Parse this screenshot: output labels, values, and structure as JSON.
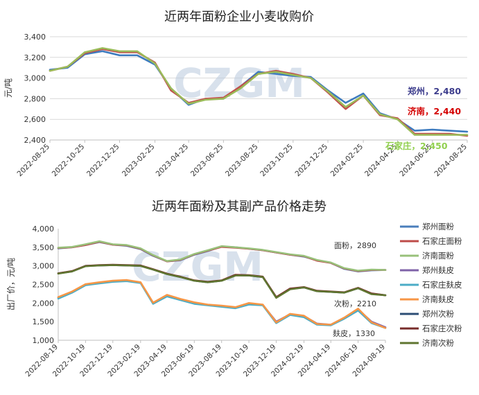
{
  "chart_data": [
    {
      "type": "line",
      "title": "近两年面粉企业小麦收购价",
      "ylabel": "元/吨",
      "ylim": [
        2400,
        3400
      ],
      "yticks": [
        "2,400",
        "2,600",
        "2,800",
        "3,000",
        "3,200",
        "3,400"
      ],
      "watermark": "CZGM",
      "grid": true,
      "x_ticks": [
        "2022-08-25",
        "2022-10-25",
        "2022-12-25",
        "2023-02-25",
        "2023-04-25",
        "2023-06-25",
        "2023-08-25",
        "2023-10-25",
        "2023-12-25",
        "2024-02-25",
        "2024-04-25",
        "2024-06-25",
        "2024-08-25"
      ],
      "x": [
        "2022-08-25",
        "2022-09-25",
        "2022-10-25",
        "2022-11-25",
        "2022-12-25",
        "2023-01-25",
        "2023-02-25",
        "2023-03-25",
        "2023-04-25",
        "2023-05-25",
        "2023-06-25",
        "2023-07-25",
        "2023-08-25",
        "2023-09-25",
        "2023-10-25",
        "2023-11-25",
        "2023-12-25",
        "2024-01-25",
        "2024-02-25",
        "2024-03-25",
        "2024-04-25",
        "2024-05-25",
        "2024-06-25",
        "2024-07-25",
        "2024-08-25"
      ],
      "series": [
        {
          "name": "郑州",
          "color": "#3d7bbf",
          "values": [
            3080,
            3100,
            3230,
            3260,
            3220,
            3220,
            3130,
            2900,
            2740,
            2800,
            2800,
            2920,
            3060,
            3040,
            3020,
            3010,
            2880,
            2760,
            2850,
            2660,
            2600,
            2490,
            2500,
            2490,
            2480
          ]
        },
        {
          "name": "济南",
          "color": "#c0504d",
          "values": [
            3070,
            3110,
            3240,
            3280,
            3250,
            3250,
            3150,
            2880,
            2760,
            2800,
            2810,
            2920,
            3040,
            3070,
            3040,
            3000,
            2860,
            2700,
            2830,
            2640,
            2610,
            2460,
            2460,
            2460,
            2440
          ]
        },
        {
          "name": "石家庄",
          "color": "#9bbb59",
          "values": [
            3070,
            3110,
            3250,
            3290,
            3260,
            3260,
            3140,
            2900,
            2750,
            2790,
            2800,
            2900,
            3040,
            3060,
            3030,
            3000,
            2870,
            2720,
            2830,
            2650,
            2600,
            2450,
            2450,
            2450,
            2450
          ]
        }
      ],
      "end_labels": [
        {
          "name": "郑州",
          "value": "2,480",
          "color": "#3c3c8c"
        },
        {
          "name": "济南",
          "value": "2,440",
          "color": "#d40000"
        },
        {
          "name": "石家庄",
          "value": "2,450",
          "color": "#92d050"
        }
      ]
    },
    {
      "type": "line",
      "title": "近两年面粉及其副产品价格走势",
      "ylabel": "出厂价，元/吨",
      "ylim": [
        1000,
        4000
      ],
      "yticks": [
        "1,000",
        "1,500",
        "2,000",
        "2,500",
        "3,000",
        "3,500",
        "4,000"
      ],
      "watermark": "CZGM",
      "grid": false,
      "x_ticks": [
        "2022-08-19",
        "2022-10-19",
        "2022-12-19",
        "2023-02-19",
        "2023-04-19",
        "2023-06-19",
        "2023-08-19",
        "2023-10-19",
        "2023-12-19",
        "2024-02-19",
        "2024-04-19",
        "2024-06-19",
        "2024-08-19"
      ],
      "x": [
        "2022-08-19",
        "2022-09-19",
        "2022-10-19",
        "2022-11-19",
        "2022-12-19",
        "2023-01-19",
        "2023-02-19",
        "2023-03-19",
        "2023-04-19",
        "2023-05-19",
        "2023-06-19",
        "2023-07-19",
        "2023-08-19",
        "2023-09-19",
        "2023-10-19",
        "2023-11-19",
        "2023-12-19",
        "2024-01-19",
        "2024-02-19",
        "2024-03-19",
        "2024-04-19",
        "2024-05-19",
        "2024-06-19",
        "2024-07-19",
        "2024-08-19"
      ],
      "series": [
        {
          "name": "郑州面粉",
          "color": "#4a7ebb",
          "values": [
            3470,
            3500,
            3560,
            3640,
            3570,
            3540,
            3450,
            3270,
            3120,
            3150,
            3300,
            3400,
            3520,
            3500,
            3460,
            3420,
            3360,
            3300,
            3250,
            3150,
            3080,
            2920,
            2850,
            2880,
            2890
          ]
        },
        {
          "name": "石家庄面粉",
          "color": "#be4b48",
          "values": [
            3480,
            3500,
            3560,
            3650,
            3570,
            3550,
            3460,
            3280,
            3120,
            3160,
            3310,
            3410,
            3510,
            3490,
            3460,
            3420,
            3360,
            3300,
            3260,
            3140,
            3080,
            2930,
            2860,
            2890,
            2890
          ]
        },
        {
          "name": "济南面粉",
          "color": "#98c07a",
          "values": [
            3490,
            3510,
            3580,
            3660,
            3580,
            3560,
            3470,
            3290,
            3130,
            3170,
            3320,
            3420,
            3530,
            3500,
            3470,
            3430,
            3370,
            3310,
            3270,
            3160,
            3090,
            2940,
            2870,
            2900,
            2890
          ]
        },
        {
          "name": "郑州麸皮",
          "color": "#7f62a8",
          "values": [
            2150,
            2300,
            2500,
            2550,
            2580,
            2600,
            2550,
            2000,
            2200,
            2100,
            2000,
            1950,
            1920,
            1880,
            1980,
            1950,
            1500,
            1700,
            1650,
            1450,
            1420,
            1600,
            1830,
            1500,
            1350
          ]
        },
        {
          "name": "石家庄麸皮",
          "color": "#4bacc6",
          "values": [
            2120,
            2280,
            2480,
            2530,
            2570,
            2590,
            2540,
            1980,
            2180,
            2080,
            1980,
            1940,
            1900,
            1860,
            1960,
            1940,
            1460,
            1680,
            1620,
            1420,
            1400,
            1580,
            1800,
            1460,
            1330
          ]
        },
        {
          "name": "济南麸皮",
          "color": "#f79646",
          "values": [
            2160,
            2310,
            2510,
            2560,
            2600,
            2620,
            2560,
            2010,
            2220,
            2110,
            2020,
            1960,
            1930,
            1890,
            2000,
            1960,
            1480,
            1710,
            1660,
            1440,
            1420,
            1610,
            1850,
            1480,
            1330
          ]
        },
        {
          "name": "郑州次粉",
          "color": "#2c4d75",
          "values": [
            2800,
            2850,
            3000,
            3010,
            3020,
            3010,
            3000,
            2900,
            2780,
            2700,
            2600,
            2560,
            2600,
            2750,
            2740,
            2700,
            2150,
            2380,
            2420,
            2320,
            2300,
            2280,
            2400,
            2250,
            2210
          ]
        },
        {
          "name": "石家庄次粉",
          "color": "#772c2a",
          "values": [
            2800,
            2860,
            3000,
            3020,
            3030,
            3020,
            3010,
            2910,
            2790,
            2710,
            2610,
            2570,
            2610,
            2760,
            2750,
            2710,
            2160,
            2390,
            2430,
            2330,
            2310,
            2290,
            2410,
            2260,
            2210
          ]
        },
        {
          "name": "济南次粉",
          "color": "#5f7530",
          "values": [
            2790,
            2850,
            2990,
            3010,
            3020,
            3010,
            3000,
            2900,
            2780,
            2700,
            2600,
            2560,
            2600,
            2740,
            2740,
            2700,
            2140,
            2370,
            2420,
            2320,
            2300,
            2280,
            2400,
            2240,
            2210
          ]
        }
      ],
      "annotations": [
        {
          "text": "面粉，2890"
        },
        {
          "text": "次粉，2210"
        },
        {
          "text": "麸皮，1330"
        }
      ]
    }
  ]
}
